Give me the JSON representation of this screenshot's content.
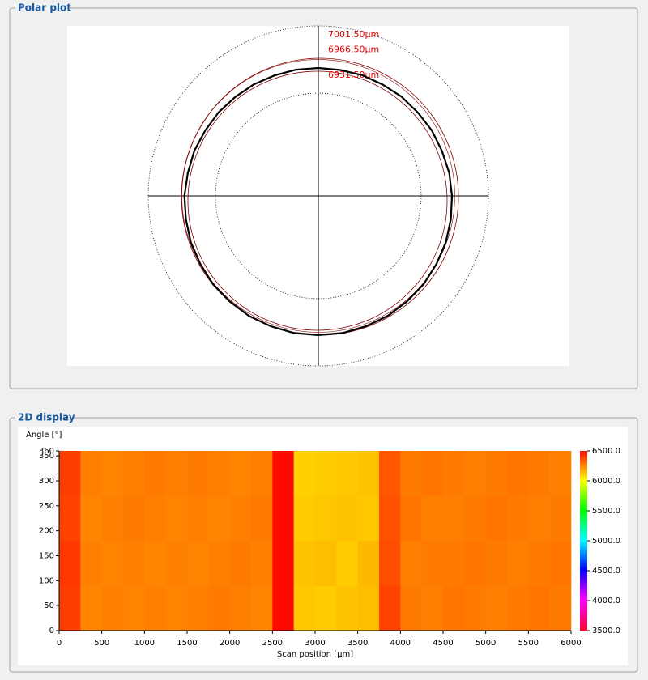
{
  "chart_data": [
    {
      "type": "polar",
      "title": "Polar plot",
      "rlim": [
        6824.5,
        7001.5
      ],
      "rticks": [
        {
          "value": 7001.5,
          "label": "7001.50µm"
        },
        {
          "value": 6966.5,
          "label": "6966.50µm"
        },
        {
          "value": 6931.5,
          "label": "6931.50µm"
        }
      ],
      "series": [
        {
          "color": "#000000",
          "angles": [
            0,
            10,
            20,
            30,
            40,
            50,
            60,
            70,
            80,
            90,
            100,
            110,
            120,
            130,
            140,
            150,
            160,
            170,
            180,
            190,
            200,
            210,
            220,
            230,
            240,
            250,
            260,
            270,
            280,
            290,
            300,
            310,
            320,
            330,
            340,
            350
          ],
          "radii": [
            6963.6,
            6962.8,
            6961.4,
            6960.9,
            6959.6,
            6959.3,
            6958.3,
            6958.2,
            6957.6,
            6957.7,
            6957.9,
            6958.0,
            6958.6,
            6959.0,
            6959.9,
            6960.5,
            6961.8,
            6962.4,
            6963.8,
            6964.4,
            6965.7,
            6966.3,
            6967.5,
            6968.0,
            6968.8,
            6969.0,
            6969.5,
            6969.4,
            6969.5,
            6969.0,
            6968.8,
            6968.0,
            6967.5,
            6966.4,
            6965.7,
            6964.5
          ]
        }
      ]
    },
    {
      "type": "heatmap",
      "title": "2D display",
      "ylabel": "Angle [°]",
      "xlabel": "Scan position [µm]",
      "xlim": [
        0,
        6000
      ],
      "xticks": [
        0,
        500,
        1000,
        1500,
        2000,
        2500,
        3000,
        3500,
        4000,
        4500,
        5000,
        5500,
        6000
      ],
      "ylim": [
        0,
        360
      ],
      "yticks": [
        0,
        50,
        100,
        150,
        200,
        250,
        300,
        350,
        360
      ],
      "x_bins": [
        0,
        250,
        500,
        750,
        1000,
        1250,
        1500,
        1750,
        2000,
        2250,
        2500,
        2750,
        3000,
        3250,
        3500,
        3750,
        4000,
        4250,
        4500,
        4750,
        5000,
        5250,
        5500,
        5750,
        6000
      ],
      "y_bins": [
        0,
        90,
        180,
        270,
        360
      ],
      "values": [
        [
          6380,
          6240,
          6250,
          6240,
          6250,
          6240,
          6250,
          6260,
          6250,
          6240,
          6480,
          6110,
          6100,
          6120,
          6130,
          6370,
          6260,
          6250,
          6270,
          6260,
          6250,
          6260,
          6270,
          6260
        ],
        [
          6390,
          6250,
          6240,
          6250,
          6240,
          6250,
          6240,
          6250,
          6260,
          6250,
          6480,
          6120,
          6130,
          6100,
          6140,
          6350,
          6250,
          6260,
          6260,
          6270,
          6260,
          6250,
          6260,
          6270
        ],
        [
          6370,
          6240,
          6250,
          6260,
          6250,
          6240,
          6250,
          6240,
          6250,
          6260,
          6480,
          6100,
          6110,
          6120,
          6110,
          6340,
          6270,
          6250,
          6250,
          6260,
          6270,
          6260,
          6250,
          6260
        ],
        [
          6380,
          6250,
          6240,
          6250,
          6260,
          6250,
          6260,
          6250,
          6240,
          6250,
          6480,
          6090,
          6100,
          6110,
          6120,
          6330,
          6260,
          6270,
          6260,
          6250,
          6260,
          6270,
          6260,
          6250
        ]
      ],
      "zlim": [
        3500,
        6500
      ],
      "zticks": [
        {
          "value": 3500,
          "label": "3500.0"
        },
        {
          "value": 4000,
          "label": "4000.0"
        },
        {
          "value": 4500,
          "label": "4500.0"
        },
        {
          "value": 5000,
          "label": "5000.0"
        },
        {
          "value": 5500,
          "label": "5500.0"
        },
        {
          "value": 6000,
          "label": "6000.0"
        },
        {
          "value": 6500,
          "label": "6500.0"
        }
      ],
      "colormap": [
        "#ff0033",
        "#ff00ff",
        "#0000ff",
        "#00ffff",
        "#00ff00",
        "#ffff00",
        "#ff0000"
      ]
    }
  ]
}
